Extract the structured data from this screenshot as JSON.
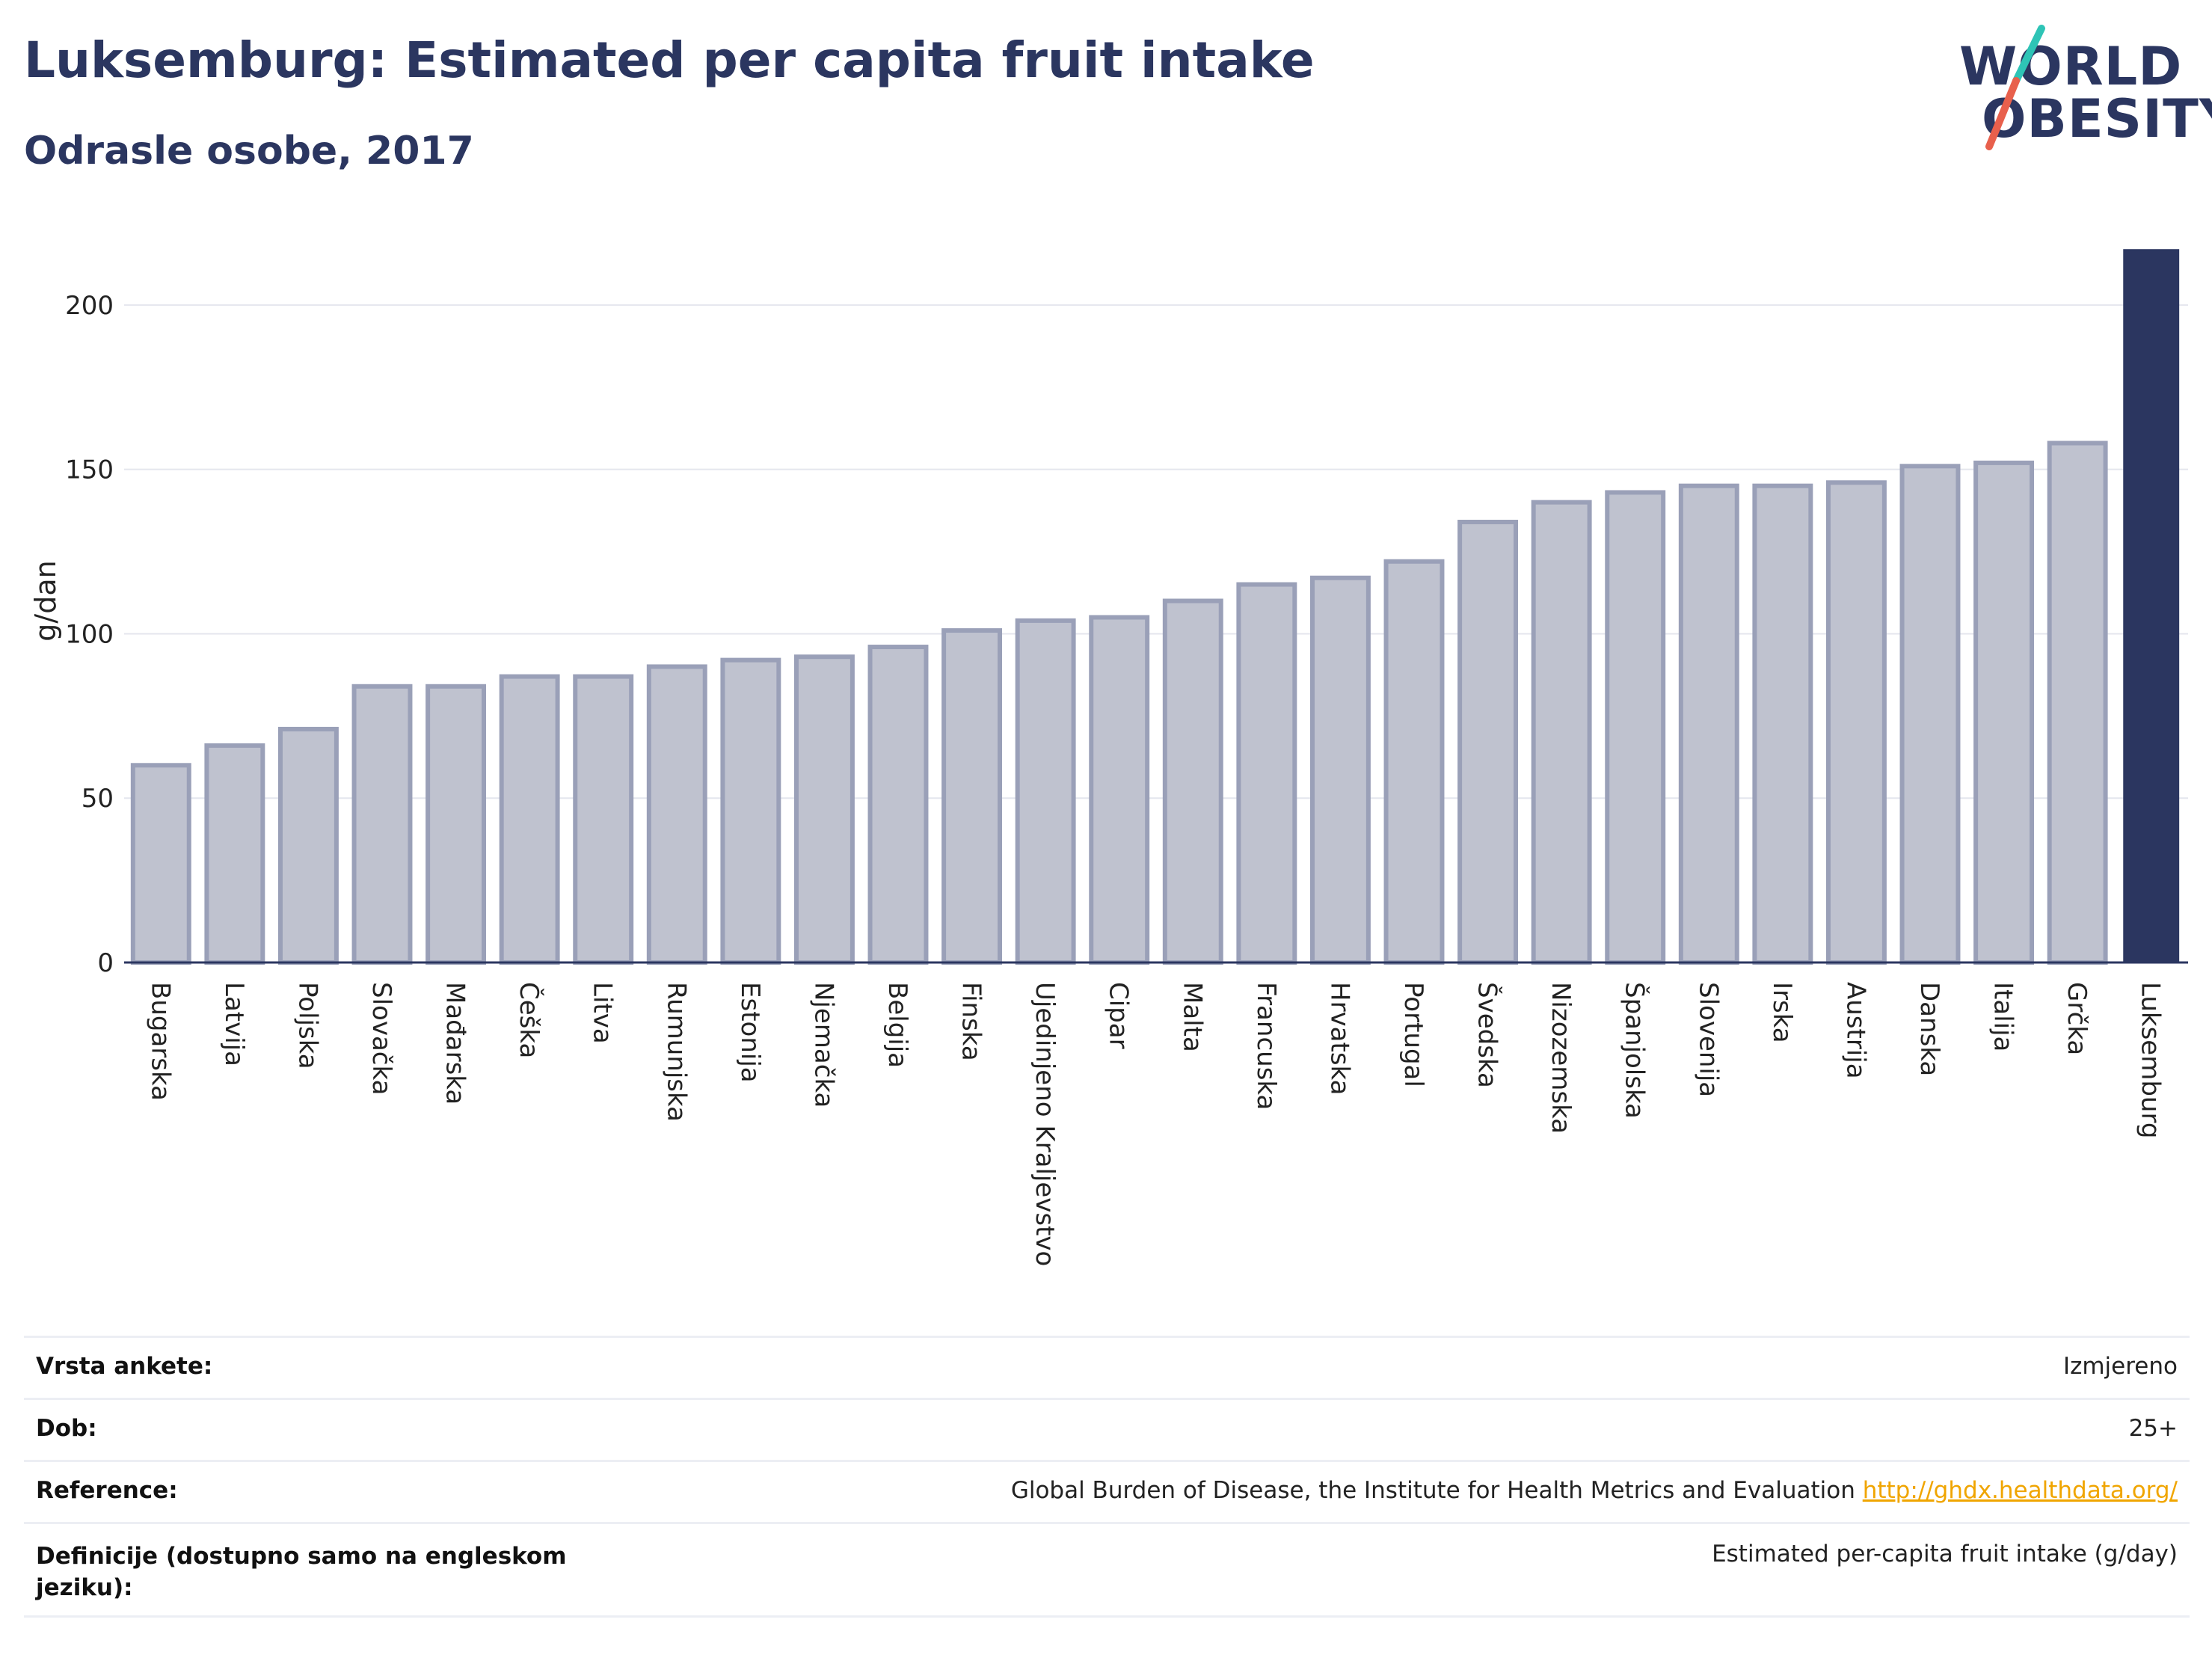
{
  "header": {
    "title": "Luksemburg: Estimated per capita fruit intake",
    "subtitle": "Odrasle osobe, 2017"
  },
  "logo": {
    "line1": "WORLD",
    "line2": "OBESITY",
    "accent_colors": [
      "#2ec4b6",
      "#e8604c"
    ]
  },
  "colors": {
    "bar": "#bfc2cf",
    "bar_border": "#9aa0b8",
    "highlight": "#2b3660",
    "grid": "#e4e6ee",
    "axis": "#2b3660",
    "text": "#2b3660"
  },
  "chart_data": {
    "type": "bar",
    "ylabel": "g/dan",
    "ylim": [
      0,
      220
    ],
    "yticks": [
      0,
      50,
      100,
      150,
      200
    ],
    "grid": true,
    "highlight_category": "Luksemburg",
    "categories": [
      "Bugarska",
      "Latvija",
      "Poljska",
      "Slovačka",
      "Mađarska",
      "Češka",
      "Litva",
      "Rumunjska",
      "Estonija",
      "Njemačka",
      "Belgija",
      "Finska",
      "Ujedinjeno Kraljevstvo",
      "Cipar",
      "Malta",
      "Francuska",
      "Hrvatska",
      "Portugal",
      "Švedska",
      "Nizozemska",
      "Španjolska",
      "Slovenija",
      "Irska",
      "Austrija",
      "Danska",
      "Italija",
      "Grčka",
      "Luksemburg"
    ],
    "values": [
      60,
      66,
      71,
      84,
      84,
      87,
      87,
      90,
      92,
      93,
      96,
      101,
      104,
      105,
      110,
      115,
      117,
      122,
      134,
      140,
      143,
      145,
      145,
      146,
      151,
      152,
      158,
      217
    ]
  },
  "meta": {
    "rows": [
      {
        "label": "Vrsta ankete:",
        "value": "Izmjereno"
      },
      {
        "label": "Dob:",
        "value": "25+"
      },
      {
        "label": "Reference:",
        "value": "Global Burden of Disease, the Institute for Health Metrics and Evaluation",
        "link": "http://ghdx.healthdata.org/"
      },
      {
        "label": "Definicije (dostupno samo na engleskom jeziku):",
        "value": "Estimated per-capita fruit intake (g/day)"
      }
    ]
  }
}
